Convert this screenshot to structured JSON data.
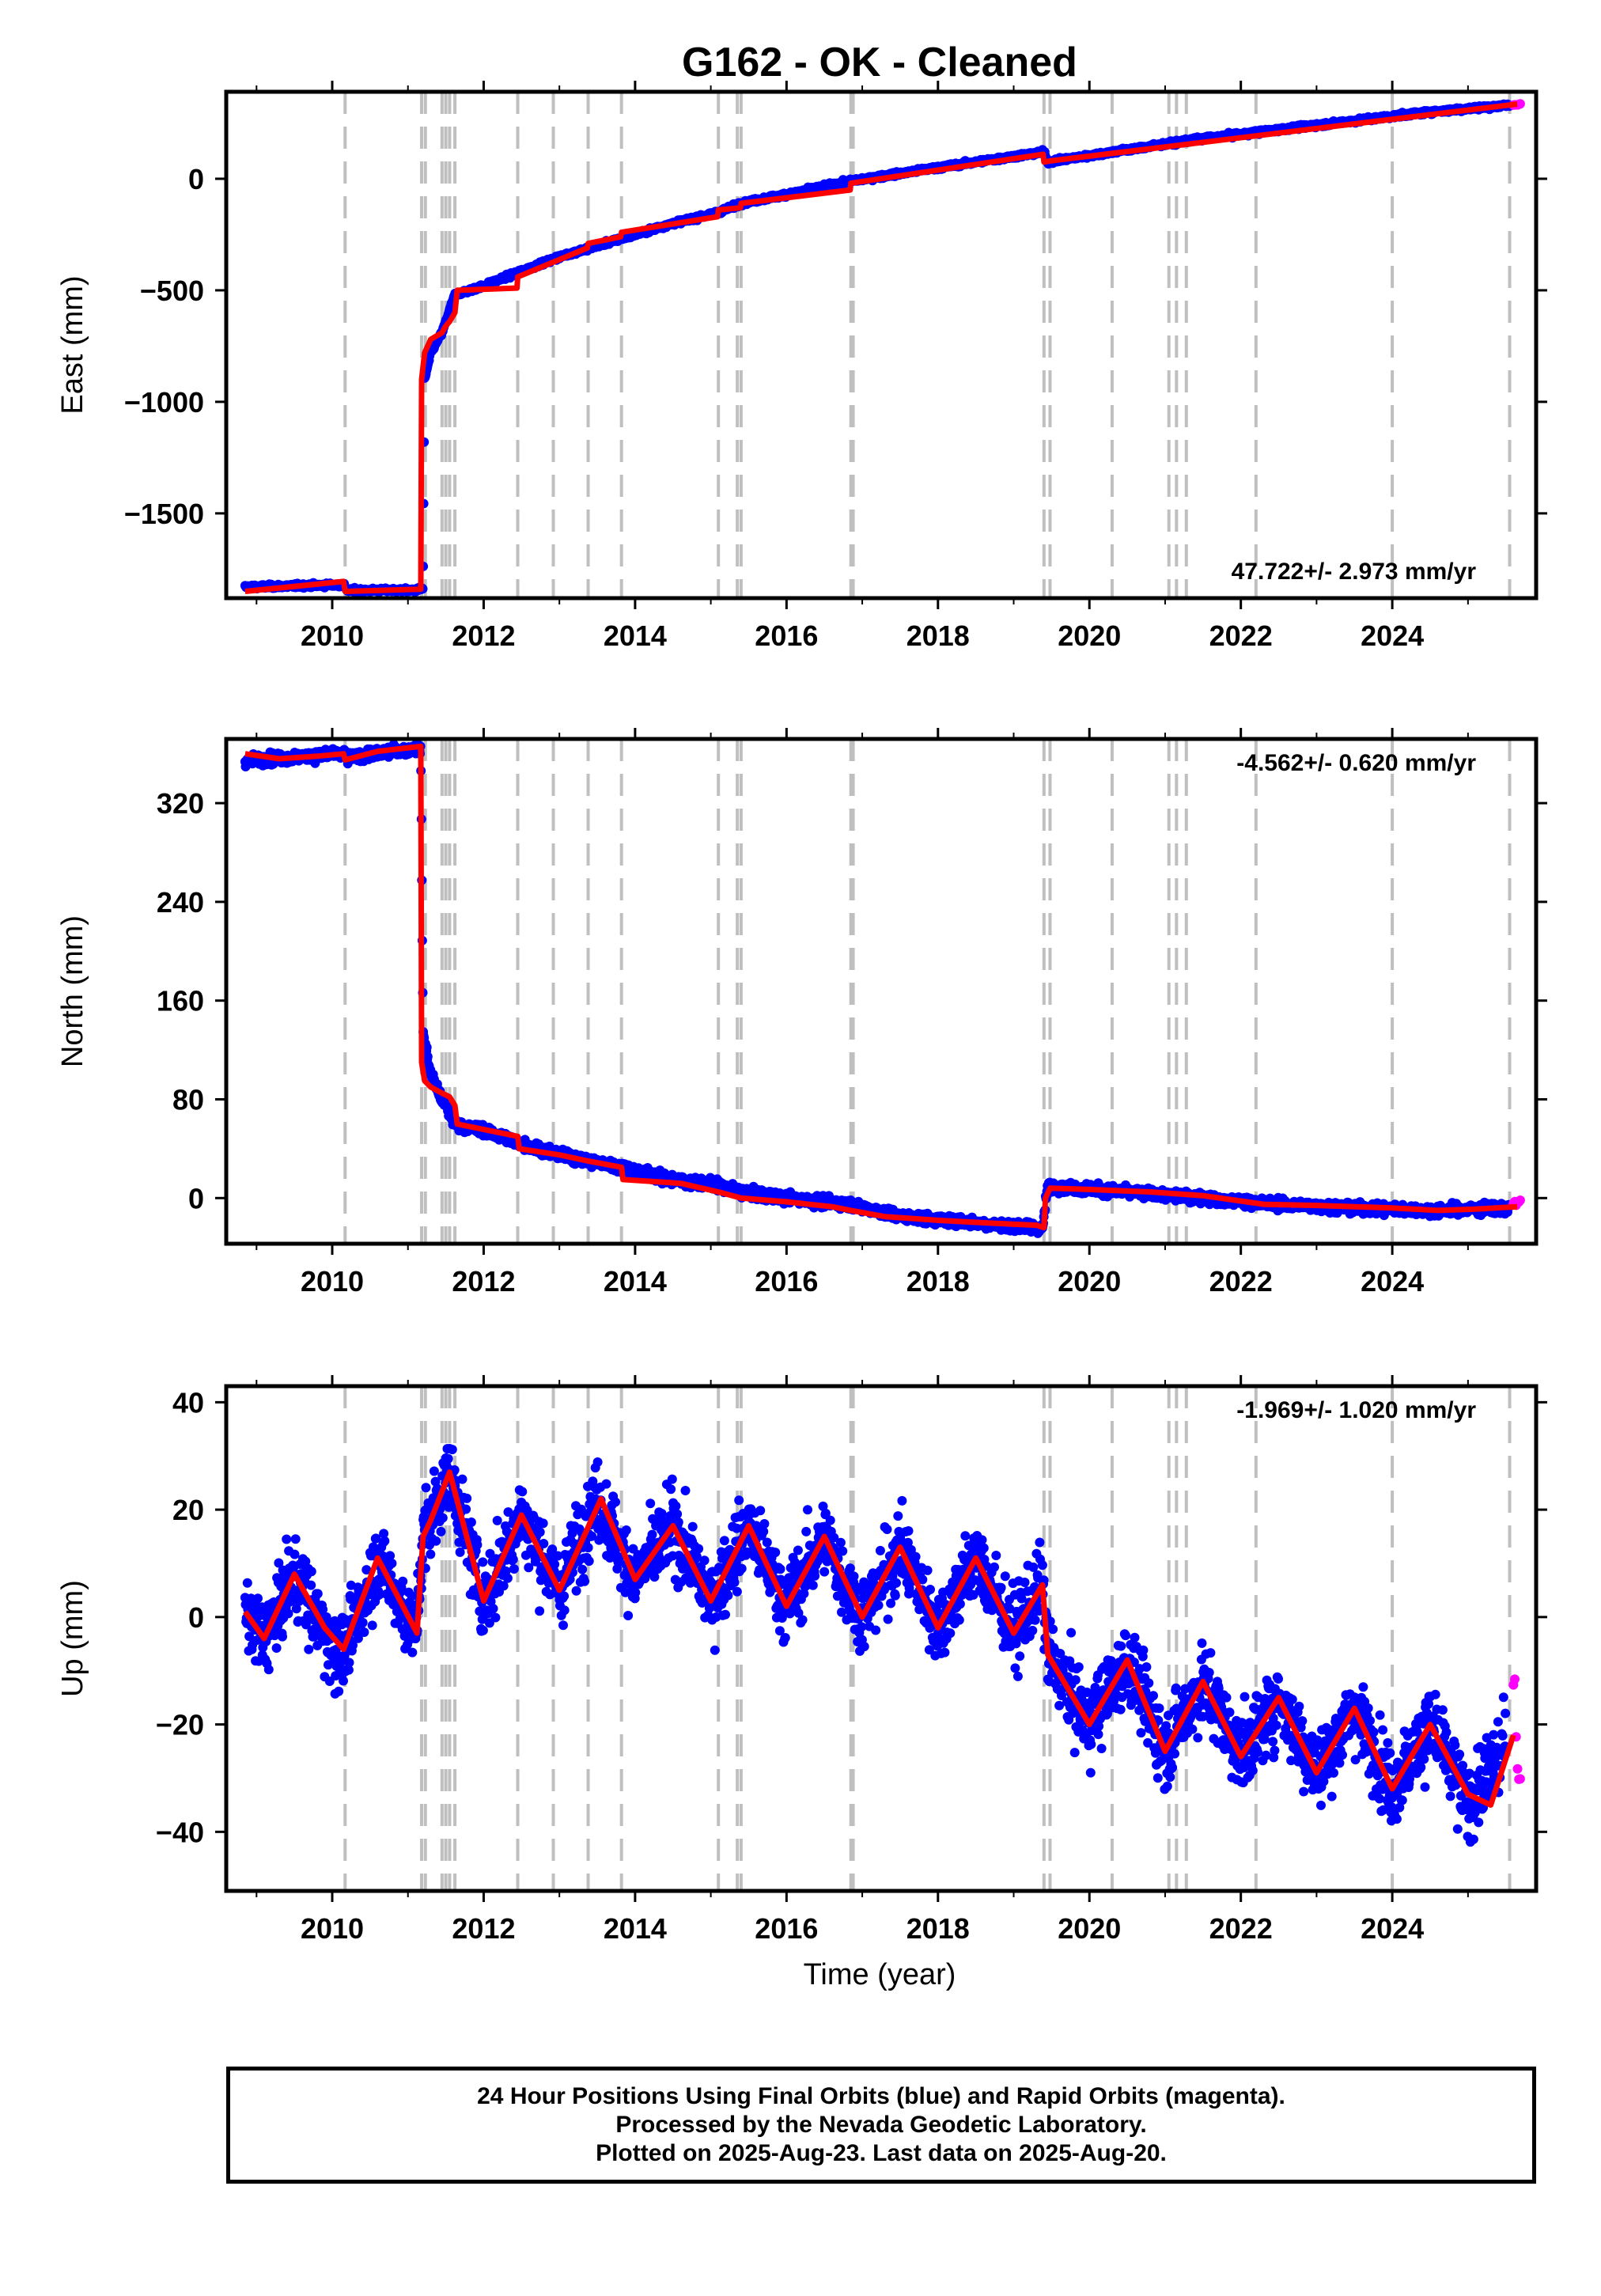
{
  "title": "G162  - OK - Cleaned",
  "footer": {
    "line1": "24 Hour Positions Using Final Orbits (blue) and Rapid Orbits (magenta).",
    "line2": "Processed by the Nevada Geodetic Laboratory.",
    "line3": "Plotted on 2025-Aug-23. Last data on 2025-Aug-20."
  },
  "colors": {
    "final_orbit_points": "#0000ff",
    "rapid_orbit_points": "#ff00ff",
    "model_line": "#ff0000",
    "event_lines": "#bfbfbf",
    "frame": "#000000"
  },
  "x_axis": {
    "label": "Time (year)",
    "range": [
      2008.6,
      2025.9
    ],
    "ticks": [
      "2010",
      "2012",
      "2014",
      "2016",
      "2018",
      "2020",
      "2022",
      "2024"
    ],
    "tick_values": [
      2010,
      2012,
      2014,
      2016,
      2018,
      2020,
      2022,
      2024
    ]
  },
  "event_lines_years": [
    2010.17,
    2011.18,
    2011.23,
    2011.45,
    2011.5,
    2011.55,
    2011.62,
    2012.45,
    2012.92,
    2013.38,
    2013.82,
    2015.1,
    2015.35,
    2015.4,
    2016.85,
    2016.88,
    2019.4,
    2019.48,
    2020.3,
    2021.05,
    2021.15,
    2021.28,
    2022.2,
    2024.0,
    2025.55
  ],
  "chart_data": [
    {
      "type": "scatter",
      "ylabel": "East (mm)",
      "yticks": [
        "0",
        "−500",
        "−1000",
        "−1500"
      ],
      "ytick_values": [
        0,
        -500,
        -1000,
        -1500
      ],
      "ylim": [
        -1880,
        390
      ],
      "rate_label": "47.722+/- 2.973 mm/yr",
      "rate_position": "bottom-right",
      "series": [
        {
          "name": "Final Orbits (blue)",
          "noise": 6,
          "x": [
            2008.85,
            2009.5,
            2010.15,
            2010.2,
            2011.1,
            2011.2,
            2011.22,
            2011.3,
            2011.45,
            2011.62,
            2012.0,
            2012.45,
            2013.0,
            2013.8,
            2014.5,
            2015.1,
            2015.4,
            2016.0,
            2016.85,
            2018.0,
            2019.4,
            2019.45,
            2020.5,
            2021.5,
            2022.5,
            2023.5,
            2024.5,
            2025.55
          ],
          "y": [
            -1830,
            -1825,
            -1820,
            -1845,
            -1845,
            -1835,
            -900,
            -780,
            -690,
            -520,
            -480,
            -420,
            -350,
            -270,
            -200,
            -150,
            -110,
            -70,
            -10,
            50,
            120,
            75,
            130,
            180,
            220,
            260,
            300,
            330
          ]
        },
        {
          "name": "Rapid Orbits (magenta)",
          "noise": 3,
          "x": [
            2025.6,
            2025.65,
            2025.7
          ],
          "y": [
            330,
            333,
            335
          ]
        }
      ],
      "model": {
        "x": [
          2008.85,
          2010.15,
          2010.17,
          2011.17,
          2011.18,
          2011.22,
          2011.3,
          2011.45,
          2011.5,
          2011.55,
          2011.62,
          2011.65,
          2012.44,
          2012.45,
          2013.37,
          2013.38,
          2013.81,
          2013.82,
          2015.09,
          2015.1,
          2015.39,
          2015.4,
          2016.84,
          2016.85,
          2019.39,
          2019.4,
          2019.48,
          2025.65
        ],
        "y": [
          -1850,
          -1805,
          -1850,
          -1840,
          -900,
          -780,
          -720,
          -690,
          -660,
          -640,
          -600,
          -500,
          -490,
          -440,
          -310,
          -290,
          -260,
          -240,
          -170,
          -140,
          -130,
          -110,
          -50,
          -20,
          110,
          75,
          80,
          335
        ]
      }
    },
    {
      "type": "scatter",
      "ylabel": "North (mm)",
      "yticks": [
        "0",
        "80",
        "160",
        "240",
        "320"
      ],
      "ytick_values": [
        0,
        80,
        160,
        240,
        320
      ],
      "ylim": [
        -37,
        372
      ],
      "rate_label": "-4.562+/- 0.620 mm/yr",
      "rate_position": "top-right",
      "series": [
        {
          "name": "Final Orbits (blue)",
          "noise": 3,
          "x": [
            2008.85,
            2009.5,
            2010.15,
            2010.2,
            2011.1,
            2011.17,
            2011.2,
            2011.3,
            2011.45,
            2011.62,
            2012.0,
            2012.45,
            2013.0,
            2013.8,
            2014.5,
            2015.1,
            2015.4,
            2016.0,
            2016.85,
            2017.5,
            2018.5,
            2019.38,
            2019.45,
            2020.5,
            2021.5,
            2022.5,
            2023.5,
            2024.5,
            2025.55
          ],
          "y": [
            355,
            357,
            360,
            357,
            364,
            363,
            135,
            100,
            80,
            60,
            55,
            45,
            35,
            25,
            15,
            10,
            5,
            0,
            -5,
            -15,
            -20,
            -25,
            10,
            5,
            0,
            -5,
            -8,
            -10,
            -8
          ]
        },
        {
          "name": "Rapid Orbits (magenta)",
          "noise": 2,
          "x": [
            2025.6,
            2025.65,
            2025.7
          ],
          "y": [
            -3,
            -5,
            -2
          ]
        }
      ],
      "model": {
        "x": [
          2008.85,
          2009.3,
          2009.8,
          2010.15,
          2010.17,
          2010.6,
          2011.17,
          2011.18,
          2011.22,
          2011.3,
          2011.45,
          2011.55,
          2011.62,
          2011.65,
          2012.45,
          2012.47,
          2013.0,
          2013.38,
          2013.82,
          2013.84,
          2014.6,
          2015.1,
          2015.4,
          2016.0,
          2016.6,
          2016.85,
          2017.3,
          2018.0,
          2018.6,
          2019.3,
          2019.4,
          2019.42,
          2019.48,
          2020.0,
          2020.8,
          2021.5,
          2022.3,
          2023.0,
          2024.0,
          2024.6,
          2025.1,
          2025.65
        ],
        "y": [
          360,
          356,
          358,
          360,
          355,
          362,
          366,
          110,
          95,
          90,
          85,
          82,
          75,
          60,
          50,
          40,
          35,
          30,
          25,
          15,
          12,
          5,
          0,
          -3,
          -7,
          -10,
          -15,
          -18,
          -20,
          -22,
          -24,
          0,
          8,
          7,
          5,
          2,
          -5,
          -6,
          -8,
          -10,
          -9,
          -7
        ]
      }
    },
    {
      "type": "scatter",
      "ylabel": "Up (mm)",
      "yticks": [
        "40",
        "20",
        "0",
        "−20",
        "−40"
      ],
      "ytick_values": [
        40,
        20,
        0,
        -20,
        -40
      ],
      "ylim": [
        -51,
        43
      ],
      "rate_label": "-1.969+/- 1.020 mm/yr",
      "rate_position": "top-right",
      "series": [
        {
          "name": "Final Orbits (blue)",
          "noise": 5,
          "x": [
            2008.85,
            2009.1,
            2009.5,
            2009.9,
            2010.15,
            2010.6,
            2011.1,
            2011.2,
            2011.55,
            2012.0,
            2012.5,
            2013.0,
            2013.5,
            2014.0,
            2014.5,
            2015.0,
            2015.5,
            2016.0,
            2016.5,
            2017.0,
            2017.5,
            2018.0,
            2018.5,
            2019.0,
            2019.38,
            2019.45,
            2020.0,
            2020.5,
            2021.0,
            2021.5,
            2022.0,
            2022.5,
            2023.0,
            2023.5,
            2024.0,
            2024.5,
            2025.0,
            2025.5
          ],
          "y": [
            0,
            -4,
            8,
            -3,
            -7,
            11,
            -3,
            15,
            27,
            3,
            19,
            5,
            22,
            7,
            17,
            3,
            17,
            2,
            15,
            0,
            13,
            -2,
            11,
            -3,
            6,
            -7,
            -20,
            -8,
            -25,
            -12,
            -26,
            -15,
            -29,
            -17,
            -32,
            -20,
            -35,
            -24
          ]
        },
        {
          "name": "Rapid Orbits (magenta)",
          "noise": 6,
          "x": [
            2025.6,
            2025.62,
            2025.65,
            2025.68,
            2025.7
          ],
          "y": [
            -11,
            -17,
            -22,
            -26,
            -34
          ]
        }
      ],
      "model": {
        "x": [
          2008.85,
          2009.1,
          2009.5,
          2009.9,
          2010.15,
          2010.6,
          2011.12,
          2011.2,
          2011.3,
          2011.55,
          2012.0,
          2012.5,
          2013.0,
          2013.55,
          2014.0,
          2014.5,
          2015.0,
          2015.5,
          2016.0,
          2016.5,
          2017.0,
          2017.5,
          2018.0,
          2018.5,
          2019.0,
          2019.38,
          2019.45,
          2020.0,
          2020.5,
          2021.0,
          2021.5,
          2022.0,
          2022.5,
          2023.0,
          2023.5,
          2024.0,
          2024.5,
          2025.0,
          2025.3,
          2025.6
        ],
        "y": [
          1,
          -4,
          8,
          -2,
          -6,
          11,
          -3,
          15,
          18,
          27,
          3,
          19,
          5,
          22,
          7,
          17,
          3,
          17,
          2,
          15,
          0,
          13,
          -2,
          11,
          -3,
          6,
          -7,
          -20,
          -8,
          -25,
          -12,
          -26,
          -15,
          -29,
          -17,
          -32,
          -20,
          -33,
          -35,
          -22
        ]
      }
    }
  ]
}
